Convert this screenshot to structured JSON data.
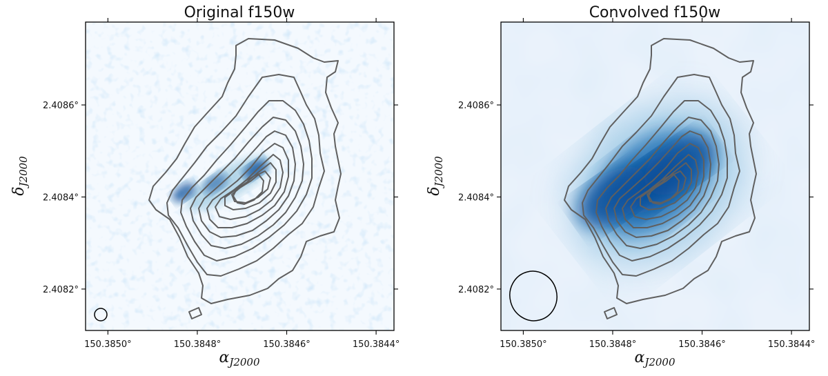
{
  "chart_data": [
    {
      "type": "heatmap",
      "title": "Original f150w",
      "xlabel": "α",
      "xlabel_sub": "J2000",
      "ylabel": "δ",
      "ylabel_sub": "J2000",
      "x_ticks": [
        "150.3850°",
        "150.3848°",
        "150.3846°",
        "150.3844°"
      ],
      "y_ticks": [
        "2.4086°",
        "2.4084°",
        "2.4082°"
      ],
      "x_tick_values": [
        150.385,
        150.3848,
        150.3846,
        150.3844
      ],
      "y_tick_values": [
        2.4086,
        2.4084,
        2.4082
      ],
      "xlim": [
        150.38505,
        150.38436
      ],
      "ylim": [
        2.40811,
        2.40878
      ],
      "colormap": "Blues",
      "contour_levels": 10,
      "contour_color": "#5f5f5f",
      "beam": "small circle, lower-left",
      "emission_peaks": [
        {
          "ra": 150.38483,
          "dec": 2.40841,
          "intensity": 0.75
        },
        {
          "ra": 150.38476,
          "dec": 2.40843,
          "intensity": 0.55
        },
        {
          "ra": 150.38467,
          "dec": 2.40846,
          "intensity": 0.8
        }
      ]
    },
    {
      "type": "heatmap",
      "title": "Convolved f150w",
      "xlabel": "α",
      "xlabel_sub": "J2000",
      "ylabel": "δ",
      "ylabel_sub": "J2000",
      "x_ticks": [
        "150.3850°",
        "150.3848°",
        "150.3846°",
        "150.3844°"
      ],
      "y_ticks": [
        "2.4086°",
        "2.4084°",
        "2.4082°"
      ],
      "x_tick_values": [
        150.385,
        150.3848,
        150.3846,
        150.3844
      ],
      "y_tick_values": [
        2.4086,
        2.4084,
        2.4082
      ],
      "xlim": [
        150.38505,
        150.38436
      ],
      "ylim": [
        2.40811,
        2.40878
      ],
      "colormap": "Blues",
      "contour_levels": 10,
      "contour_color": "#5f5f5f",
      "beam": "large ellipse, lower-left",
      "emission_peaks": [
        {
          "ra": 150.38471,
          "dec": 2.40843,
          "intensity": 1.0
        },
        {
          "ra": 150.3848,
          "dec": 2.4084,
          "intensity": 0.85
        },
        {
          "ra": 150.38465,
          "dec": 2.40847,
          "intensity": 0.8
        }
      ]
    }
  ],
  "colors": {
    "cmap_low": "#f4f9fe",
    "cmap_mid": "#6baed6",
    "cmap_high": "#08519c",
    "contour": "#5f5f5f"
  }
}
